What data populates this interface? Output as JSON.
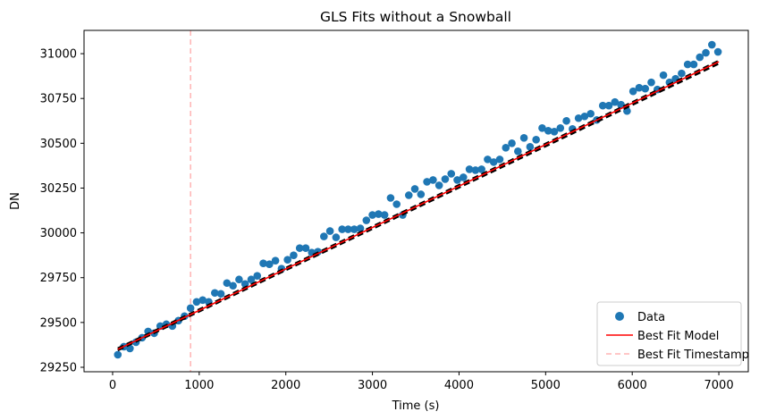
{
  "chart_data": {
    "type": "scatter",
    "title": "GLS Fits without a Snowball",
    "xlabel": "Time (s)",
    "ylabel": "DN",
    "xlim": [
      -330,
      7340
    ],
    "ylim": [
      29225,
      31130
    ],
    "x_ticks": [
      0,
      1000,
      2000,
      3000,
      4000,
      5000,
      6000,
      7000
    ],
    "y_ticks": [
      29250,
      29500,
      29750,
      30000,
      30250,
      30500,
      30750,
      31000
    ],
    "legend_position": "lower right",
    "grid": false,
    "colors": {
      "data": "#1f77b4",
      "best_fit_model": "#ff0000",
      "best_fit_timestamp": "#ffb3b3",
      "black_fits": "#000000"
    },
    "legend": {
      "data": "Data",
      "model": "Best Fit Model",
      "timestamp": "Best Fit Timestamp"
    },
    "series": [
      {
        "name": "Data",
        "kind": "scatter",
        "x": [
          60,
          130,
          200,
          270,
          340,
          410,
          480,
          550,
          620,
          690,
          760,
          830,
          900,
          970,
          1040,
          1110,
          1180,
          1250,
          1320,
          1390,
          1460,
          1530,
          1600,
          1670,
          1740,
          1810,
          1880,
          1950,
          2020,
          2090,
          2160,
          2230,
          2300,
          2370,
          2440,
          2510,
          2580,
          2650,
          2720,
          2790,
          2860,
          2930,
          3000,
          3070,
          3140,
          3210,
          3280,
          3350,
          3420,
          3490,
          3560,
          3630,
          3700,
          3770,
          3840,
          3910,
          3980,
          4050,
          4120,
          4190,
          4260,
          4330,
          4400,
          4470,
          4540,
          4610,
          4680,
          4750,
          4820,
          4890,
          4960,
          5030,
          5100,
          5170,
          5240,
          5310,
          5380,
          5450,
          5520,
          5590,
          5660,
          5730,
          5800,
          5870,
          5940,
          6010,
          6080,
          6150,
          6220,
          6290,
          6360,
          6430,
          6500,
          6570,
          6640,
          6710,
          6780,
          6850,
          6920,
          6990
        ],
        "y": [
          29320,
          29365,
          29355,
          29390,
          29415,
          29450,
          29440,
          29480,
          29490,
          29480,
          29510,
          29535,
          29580,
          29615,
          29625,
          29615,
          29665,
          29660,
          29720,
          29705,
          29740,
          29715,
          29740,
          29760,
          29830,
          29825,
          29845,
          29800,
          29850,
          29875,
          29915,
          29915,
          29890,
          29895,
          29980,
          30010,
          29975,
          30020,
          30020,
          30020,
          30025,
          30070,
          30100,
          30105,
          30100,
          30195,
          30160,
          30100,
          30210,
          30245,
          30215,
          30285,
          30295,
          30265,
          30300,
          30330,
          30295,
          30310,
          30355,
          30350,
          30355,
          30410,
          30395,
          30410,
          30475,
          30500,
          30455,
          30530,
          30480,
          30520,
          30585,
          30570,
          30565,
          30585,
          30625,
          30580,
          30640,
          30650,
          30665,
          30630,
          30710,
          30710,
          30730,
          30715,
          30680,
          30790,
          30810,
          30805,
          30840,
          30800,
          30880,
          30840,
          30860,
          30890,
          30940,
          30940,
          30980,
          31005,
          31050,
          31010
        ]
      },
      {
        "name": "Best Fit Model",
        "kind": "line",
        "x": [
          60,
          7000
        ],
        "y": [
          29350,
          30955
        ]
      },
      {
        "name": "",
        "kind": "dashed",
        "x": [
          60,
          7000
        ],
        "y": [
          29345,
          30945
        ]
      },
      {
        "name": "",
        "kind": "dashed",
        "x": [
          60,
          7000
        ],
        "y": [
          29355,
          30960
        ]
      }
    ],
    "vline": {
      "name": "Best Fit Timestamp",
      "x": 900
    }
  }
}
